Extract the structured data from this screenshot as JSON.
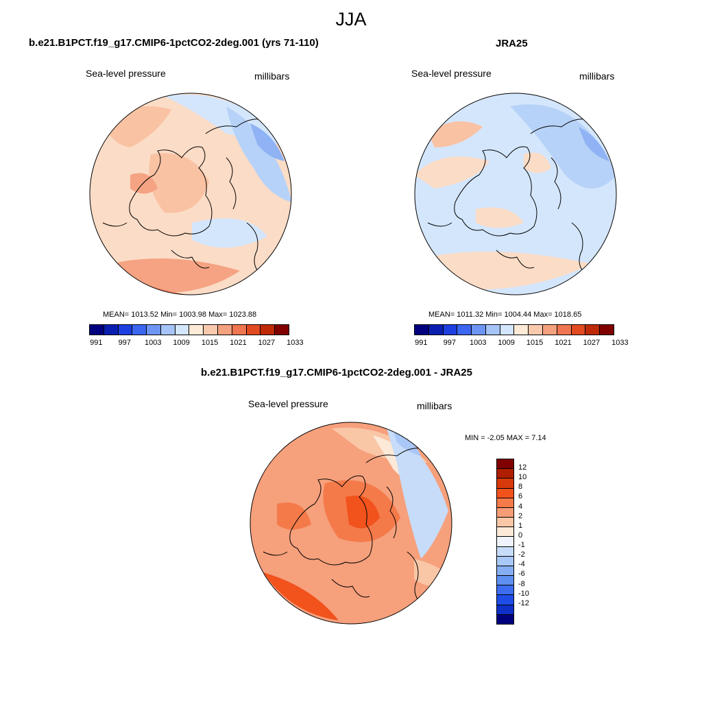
{
  "season": "JJA",
  "panels": {
    "model": {
      "title": "b.e21.B1PCT.f19_g17.CMIP6-1pctCO2-2deg.001 (yrs 71-110)",
      "variable": "Sea-level pressure",
      "units": "millibars",
      "stats": "MEAN= 1013.52  Min= 1003.98  Max= 1023.88"
    },
    "obs": {
      "title": "JRA25",
      "variable": "Sea-level pressure",
      "units": "millibars",
      "stats": "MEAN= 1011.32  Min= 1004.44  Max= 1018.65"
    },
    "diff": {
      "title": "b.e21.B1PCT.f19_g17.CMIP6-1pctCO2-2deg.001 - JRA25",
      "variable": "Sea-level pressure",
      "units": "millibars",
      "stats": "MIN =  -2.05 MAX =   7.14"
    }
  },
  "colorbar_abs": {
    "colors": [
      "#00007f",
      "#0a1fb0",
      "#1e3fe0",
      "#3b66f0",
      "#6f95f4",
      "#a6c4f8",
      "#d4e6fc",
      "#fdebd8",
      "#f9c9ae",
      "#f4a17f",
      "#ef7650",
      "#e24a1f",
      "#bf2a06",
      "#800000"
    ],
    "tick_labels": [
      "991",
      "997",
      "1003",
      "1009",
      "1015",
      "1021",
      "1027",
      "1033"
    ]
  },
  "colorbar_diff": {
    "colors": [
      "#800000",
      "#b01e00",
      "#d8380a",
      "#f2521c",
      "#f47a4a",
      "#f69c76",
      "#f9c6a6",
      "#fde9d8",
      "#eef3fc",
      "#c7dcf8",
      "#a9c7f7",
      "#86aef3",
      "#5f8ff0",
      "#3c6df0",
      "#1e4ce6",
      "#0e2fc8",
      "#00007f"
    ],
    "tick_labels": [
      "12",
      "10",
      "8",
      "6",
      "4",
      "2",
      "1",
      "0",
      "-1",
      "-2",
      "-4",
      "-6",
      "-8",
      "-10",
      "-12"
    ]
  },
  "maps": {
    "model": {
      "fill": "#fbdcc6",
      "regions": [
        {
          "color": "#f9c2a3"
        },
        {
          "color": "#f5a383"
        },
        {
          "color": "#f08560"
        },
        {
          "color": "#d4e6fc"
        },
        {
          "color": "#b7d2f8"
        },
        {
          "color": "#8fb3f4"
        },
        {
          "color": "#f9c2a3"
        },
        {
          "color": "#f5a383"
        },
        {
          "color": "#d4e6fc"
        }
      ]
    },
    "obs": {
      "fill": "#d4e6fc",
      "regions": [
        {
          "color": "#fbdcc6"
        },
        {
          "color": "#f9c2a3"
        },
        {
          "color": "#b7d2f8"
        },
        {
          "color": "#8fb3f4"
        },
        {
          "color": "#fbdcc6"
        },
        {
          "color": "#fbdcc6"
        },
        {
          "color": "#fbdcc6"
        }
      ]
    },
    "diff": {
      "fill": "#f6a07c",
      "regions": [
        {
          "color": "#f9c6a6"
        },
        {
          "color": "#f47a4a"
        },
        {
          "color": "#f2521c"
        },
        {
          "color": "#fde9d8"
        },
        {
          "color": "#c7dcf8"
        },
        {
          "color": "#a9c7f7"
        },
        {
          "color": "#f2521c"
        },
        {
          "color": "#f9c6a6"
        },
        {
          "color": "#f47a4a"
        }
      ]
    }
  }
}
